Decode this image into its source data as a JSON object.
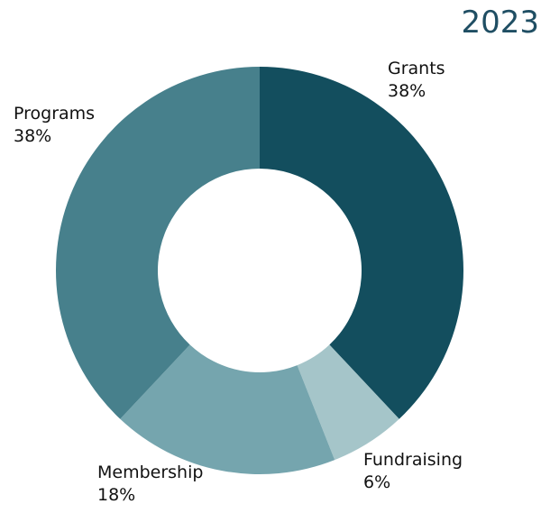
{
  "chart_data": {
    "type": "donut",
    "title": "2023",
    "categories": [
      "Grants",
      "Fundraising",
      "Membership",
      "Programs"
    ],
    "values": [
      38,
      6,
      18,
      38
    ],
    "value_labels": [
      "38%",
      "6%",
      "18%",
      "38%"
    ],
    "colors": [
      "#134e5e",
      "#a5c5c9",
      "#75a5ae",
      "#47808c"
    ]
  }
}
